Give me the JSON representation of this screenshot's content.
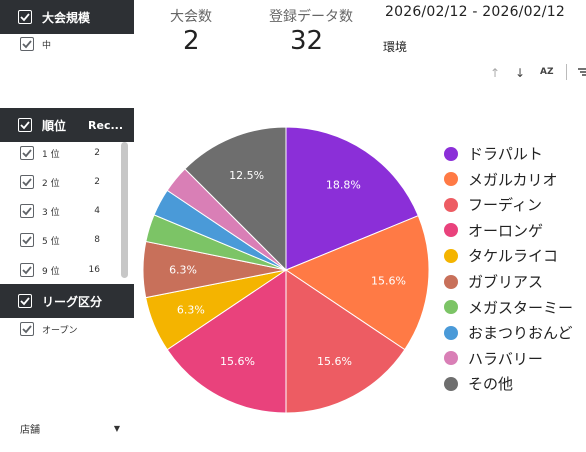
{
  "filters": {
    "tournament_size": {
      "title": "大会規模",
      "options": [
        "中"
      ]
    },
    "rank": {
      "title": "順位",
      "column": "Rec...",
      "rows": [
        {
          "label": "1 位",
          "count": "2"
        },
        {
          "label": "2 位",
          "count": "2"
        },
        {
          "label": "3 位",
          "count": "4"
        },
        {
          "label": "5 位",
          "count": "8"
        },
        {
          "label": "9 位",
          "count": "16"
        }
      ]
    },
    "league": {
      "title": "リーグ区分",
      "options": [
        "オープン"
      ]
    },
    "store": {
      "label": "店舗"
    }
  },
  "kpis": [
    {
      "label": "大会数",
      "value": "2"
    },
    {
      "label": "登録データ数",
      "value": "32"
    }
  ],
  "date_range": "2026/02/12 - 2026/02/12",
  "environment_label": "環境",
  "toolbar": {
    "sort_asc": "↑",
    "sort_desc": "↓",
    "az": "AZ"
  },
  "chart_data": {
    "type": "pie",
    "start": "12 o'clock, clockwise",
    "slices": [
      {
        "label": "ドラパルト",
        "value": 18.8,
        "display": "18.8%",
        "color": "#8b2fd8"
      },
      {
        "label": "メガルカリオ",
        "value": 15.6,
        "display": "15.6%",
        "color": "#ff7a45"
      },
      {
        "label": "フーディン",
        "value": 15.6,
        "display": "15.6%",
        "color": "#ed5c63"
      },
      {
        "label": "オーロンゲ",
        "value": 15.6,
        "display": "15.6%",
        "color": "#e9427c"
      },
      {
        "label": "タケルライコ",
        "value": 6.3,
        "display": "6.3%",
        "color": "#f4b400"
      },
      {
        "label": "ガブリアス",
        "value": 6.3,
        "display": "6.3%",
        "color": "#c8705a"
      },
      {
        "label": "メガスターミー",
        "value": 3.1,
        "display": "",
        "color": "#7cc466"
      },
      {
        "label": "おまつりおんど",
        "value": 3.1,
        "display": "",
        "color": "#4a9ad8"
      },
      {
        "label": "ハラバリー",
        "value": 3.1,
        "display": "",
        "color": "#d97fb6"
      },
      {
        "label": "その他",
        "value": 12.5,
        "display": "12.5%",
        "color": "#6e6e6e"
      }
    ]
  }
}
